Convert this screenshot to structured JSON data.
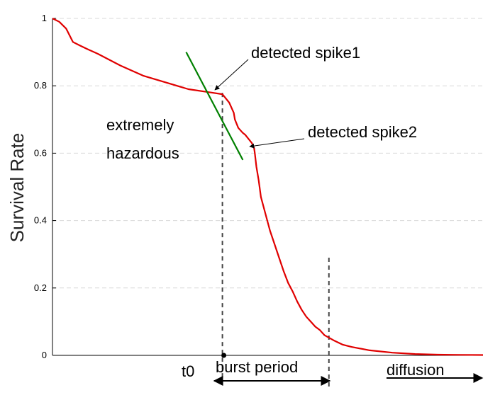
{
  "chart_data": {
    "type": "line",
    "title": "",
    "xlabel": "",
    "ylabel": "Survival Rate",
    "ylim": [
      0,
      1
    ],
    "yticks": [
      0,
      0.2,
      0.4,
      0.6,
      0.8,
      1
    ],
    "ytick_labels": [
      "0",
      "0.2",
      "0.4",
      "0.6",
      "0.8",
      "1"
    ],
    "grid": "horizontal dashed",
    "colors": {
      "curve": "#e00000",
      "tangent": "#008000",
      "markers": "#444444"
    },
    "series": [
      {
        "values_note_none": "",
        "x": [
          0,
          3,
          6,
          9,
          12,
          15,
          20,
          30,
          40,
          50,
          60,
          70,
          75,
          78,
          80,
          80.5,
          82,
          84,
          85,
          88,
          89,
          89.3,
          90,
          91,
          92,
          94,
          96,
          98,
          100,
          102,
          104,
          106,
          108,
          110,
          112,
          114,
          116,
          118,
          120,
          124,
          128,
          132,
          140,
          150,
          160,
          170,
          180,
          190
        ],
        "y": [
          1.0,
          0.99,
          0.97,
          0.93,
          0.92,
          0.91,
          0.895,
          0.86,
          0.83,
          0.81,
          0.79,
          0.78,
          0.775,
          0.75,
          0.72,
          0.7,
          0.675,
          0.66,
          0.655,
          0.63,
          0.615,
          0.6,
          0.56,
          0.52,
          0.47,
          0.42,
          0.37,
          0.33,
          0.29,
          0.25,
          0.215,
          0.19,
          0.16,
          0.135,
          0.115,
          0.1,
          0.085,
          0.075,
          0.06,
          0.045,
          0.032,
          0.025,
          0.015,
          0.008,
          0.004,
          0.002,
          0.0015,
          0.001
        ]
      }
    ],
    "tangent_line": {
      "x": [
        59,
        84
      ],
      "y": [
        0.9,
        0.58
      ]
    },
    "markers": {
      "t0_x": 75,
      "burst_end_x": 122,
      "burst_end_top_y": 0.29
    },
    "annotations": {
      "spike1": "detected spike1",
      "spike2": "detected spike2",
      "hazard_line1": "extremely",
      "hazard_line2": "hazardous",
      "t0": "t0",
      "burst": "burst period",
      "diffusion": "diffusion"
    },
    "xlim": [
      0,
      190
    ]
  }
}
